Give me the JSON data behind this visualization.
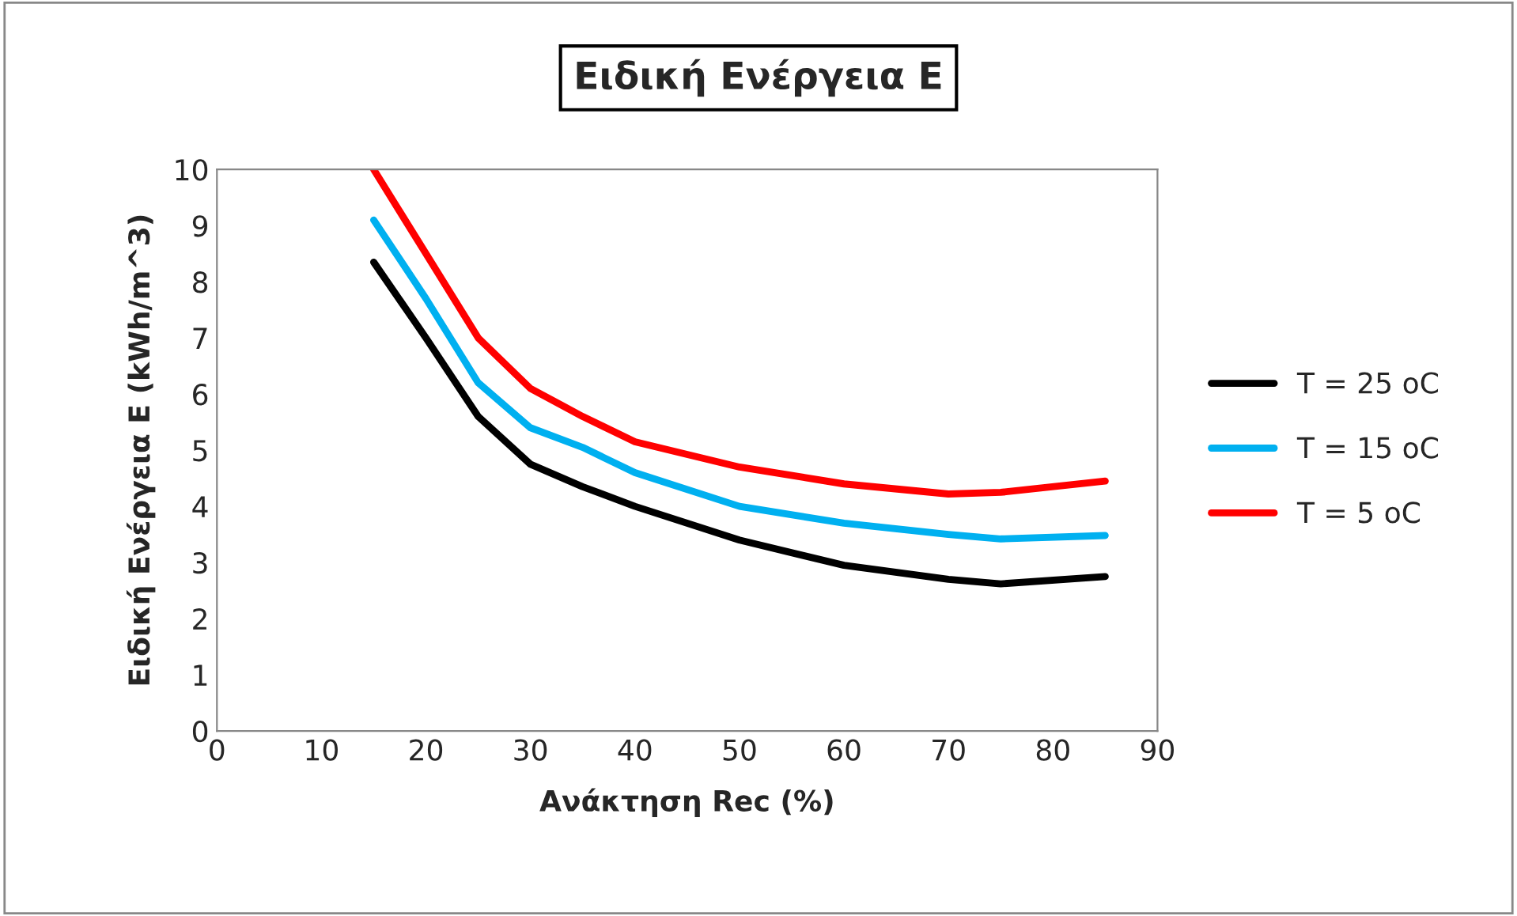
{
  "chart_data": {
    "type": "line",
    "title": "Ειδική Ενέργεια Ε",
    "xlabel": "Ανάκτηση Rec (%)",
    "ylabel": "Ειδική Ενέργεια Ε (kWh/m^3)",
    "x": [
      15,
      20,
      25,
      30,
      35,
      40,
      50,
      60,
      70,
      75,
      85
    ],
    "series": [
      {
        "name": "T = 25 oC",
        "color": "#000000",
        "values": [
          8.35,
          7.0,
          5.6,
          4.75,
          4.35,
          4.0,
          3.4,
          2.95,
          2.7,
          2.62,
          2.75
        ]
      },
      {
        "name": "T = 15 oC",
        "color": "#00b0f0",
        "values": [
          9.1,
          7.7,
          6.2,
          5.4,
          5.05,
          4.6,
          4.0,
          3.7,
          3.5,
          3.42,
          3.48
        ]
      },
      {
        "name": "T = 5 oC",
        "color": "#ff0000",
        "values": [
          10.0,
          8.5,
          7.0,
          6.1,
          5.6,
          5.15,
          4.7,
          4.4,
          4.22,
          4.25,
          4.45
        ]
      }
    ],
    "xlim": [
      0,
      90
    ],
    "xticks": [
      0,
      10,
      20,
      30,
      40,
      50,
      60,
      70,
      80,
      90
    ],
    "ylim": [
      0,
      10
    ],
    "yticks": [
      0,
      1,
      2,
      3,
      4,
      5,
      6,
      7,
      8,
      9,
      10
    ],
    "grid": false,
    "legend": "right",
    "marker": "none",
    "line_style": "solid"
  }
}
